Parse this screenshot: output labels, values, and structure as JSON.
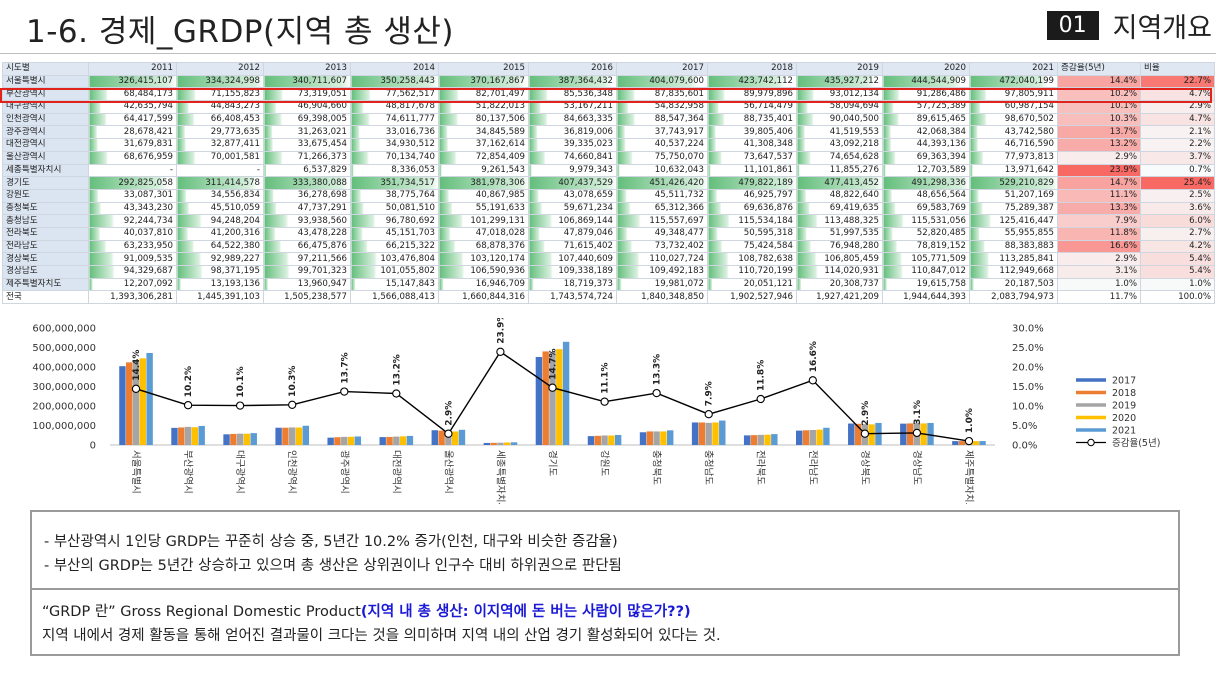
{
  "header": {
    "title": "1-6. 경제_GRDP(지역 총 생산)",
    "section_num": "01",
    "section_name": "지역개요"
  },
  "table": {
    "headers": [
      "시도별",
      "2011",
      "2012",
      "2013",
      "2014",
      "2015",
      "2016",
      "2017",
      "2018",
      "2019",
      "2020",
      "2021",
      "증감율(5년)",
      "비율"
    ],
    "rows": [
      {
        "region": "서울특별시",
        "v": [
          "326,415,107",
          "334,324,998",
          "340,711,607",
          "350,258,443",
          "370,167,867",
          "387,364,432",
          "404,079,600",
          "423,742,112",
          "435,927,212",
          "444,544,909",
          "472,040,199"
        ],
        "rate": "14.4%",
        "ratio": "22.7%"
      },
      {
        "region": "부산광역시",
        "v": [
          "68,484,173",
          "71,155,823",
          "73,319,051",
          "77,562,517",
          "82,701,497",
          "85,536,348",
          "87,835,601",
          "89,979,896",
          "93,012,134",
          "91,286,486",
          "97,805,911"
        ],
        "rate": "10.2%",
        "ratio": "4.7%"
      },
      {
        "region": "대구광역시",
        "v": [
          "42,635,794",
          "44,843,273",
          "46,904,660",
          "48,817,678",
          "51,822,013",
          "53,167,211",
          "54,832,958",
          "56,714,479",
          "58,094,694",
          "57,725,389",
          "60,987,154"
        ],
        "rate": "10.1%",
        "ratio": "2.9%"
      },
      {
        "region": "인천광역시",
        "v": [
          "64,417,599",
          "66,408,453",
          "69,398,005",
          "74,611,777",
          "80,137,506",
          "84,663,335",
          "88,547,364",
          "88,735,401",
          "90,040,500",
          "89,615,465",
          "98,670,502"
        ],
        "rate": "10.3%",
        "ratio": "4.7%"
      },
      {
        "region": "광주광역시",
        "v": [
          "28,678,421",
          "29,773,635",
          "31,263,021",
          "33,016,736",
          "34,845,589",
          "36,819,006",
          "37,743,917",
          "39,805,406",
          "41,519,553",
          "42,068,384",
          "43,742,580"
        ],
        "rate": "13.7%",
        "ratio": "2.1%"
      },
      {
        "region": "대전광역시",
        "v": [
          "31,679,831",
          "32,877,411",
          "33,675,454",
          "34,930,512",
          "37,162,614",
          "39,335,023",
          "40,537,224",
          "41,308,348",
          "43,092,218",
          "44,393,136",
          "46,716,590"
        ],
        "rate": "13.2%",
        "ratio": "2.2%"
      },
      {
        "region": "울산광역시",
        "v": [
          "68,676,959",
          "70,001,581",
          "71,266,373",
          "70,134,740",
          "72,854,409",
          "74,660,841",
          "75,750,070",
          "73,647,537",
          "74,654,628",
          "69,363,394",
          "77,973,813"
        ],
        "rate": "2.9%",
        "ratio": "3.7%"
      },
      {
        "region": "세종특별자치시",
        "v": [
          "-",
          "-",
          "6,537,829",
          "8,336,053",
          "9,261,543",
          "9,979,343",
          "10,632,043",
          "11,101,861",
          "11,855,276",
          "12,703,589",
          "13,971,642"
        ],
        "rate": "23.9%",
        "ratio": "0.7%"
      },
      {
        "region": "경기도",
        "v": [
          "292,825,058",
          "311,414,578",
          "333,380,088",
          "351,734,517",
          "381,978,306",
          "407,437,529",
          "451,426,420",
          "479,822,189",
          "477,413,452",
          "491,298,336",
          "529,210,829"
        ],
        "rate": "14.7%",
        "ratio": "25.4%"
      },
      {
        "region": "강원도",
        "v": [
          "33,087,301",
          "34,556,834",
          "36,278,698",
          "38,775,764",
          "40,867,985",
          "43,078,659",
          "45,511,732",
          "46,925,797",
          "48,822,640",
          "48,656,564",
          "51,207,169"
        ],
        "rate": "11.1%",
        "ratio": "2.5%"
      },
      {
        "region": "충청북도",
        "v": [
          "43,343,230",
          "45,510,059",
          "47,737,291",
          "50,081,510",
          "55,191,633",
          "59,671,234",
          "65,312,366",
          "69,636,876",
          "69,419,635",
          "69,583,769",
          "75,289,387"
        ],
        "rate": "13.3%",
        "ratio": "3.6%"
      },
      {
        "region": "충청남도",
        "v": [
          "92,244,734",
          "94,248,204",
          "93,938,560",
          "96,780,692",
          "101,299,131",
          "106,869,144",
          "115,557,697",
          "115,534,184",
          "113,488,325",
          "115,531,056",
          "125,416,447"
        ],
        "rate": "7.9%",
        "ratio": "6.0%"
      },
      {
        "region": "전라북도",
        "v": [
          "40,037,810",
          "41,200,316",
          "43,478,228",
          "45,151,703",
          "47,018,028",
          "47,879,046",
          "49,348,477",
          "50,595,318",
          "51,997,535",
          "52,820,485",
          "55,955,855"
        ],
        "rate": "11.8%",
        "ratio": "2.7%"
      },
      {
        "region": "전라남도",
        "v": [
          "63,233,950",
          "64,522,380",
          "66,475,876",
          "66,215,322",
          "68,878,376",
          "71,615,402",
          "73,732,402",
          "75,424,584",
          "76,948,280",
          "78,819,152",
          "88,383,883"
        ],
        "rate": "16.6%",
        "ratio": "4.2%"
      },
      {
        "region": "경상북도",
        "v": [
          "91,009,535",
          "92,989,227",
          "97,211,566",
          "103,476,804",
          "103,120,174",
          "107,440,609",
          "110,027,724",
          "108,782,638",
          "106,805,459",
          "105,771,509",
          "113,285,841"
        ],
        "rate": "2.9%",
        "ratio": "5.4%"
      },
      {
        "region": "경상남도",
        "v": [
          "94,329,687",
          "98,371,195",
          "99,701,323",
          "101,055,802",
          "106,590,936",
          "109,338,189",
          "109,492,183",
          "110,720,199",
          "114,020,931",
          "110,847,012",
          "112,949,668"
        ],
        "rate": "3.1%",
        "ratio": "5.4%"
      },
      {
        "region": "제주특별자치도",
        "v": [
          "12,207,092",
          "13,193,136",
          "13,960,947",
          "15,147,843",
          "16,946,709",
          "18,719,373",
          "19,981,072",
          "20,051,121",
          "20,308,737",
          "19,615,758",
          "20,187,503"
        ],
        "rate": "1.0%",
        "ratio": "1.0%"
      },
      {
        "region": "전국",
        "v": [
          "1,393,306,281",
          "1,445,391,103",
          "1,505,238,577",
          "1,566,088,413",
          "1,660,844,316",
          "1,743,574,724",
          "1,840,348,850",
          "1,902,527,946",
          "1,927,421,209",
          "1,944,644,393",
          "2,083,794,973"
        ],
        "rate": "11.7%",
        "ratio": "100.0%"
      }
    ]
  },
  "chart_data": {
    "type": "bar",
    "categories": [
      "서울특별시",
      "부산광역시",
      "대구광역시",
      "인천광역시",
      "광주광역시",
      "대전광역시",
      "울산광역시",
      "세종특별자치시",
      "경기도",
      "강원도",
      "충청북도",
      "충청남도",
      "전라북도",
      "전라남도",
      "경상북도",
      "경상남도",
      "제주특별자치도"
    ],
    "series": [
      {
        "name": "2017",
        "color": "#4472c4",
        "values": [
          404079600,
          87835601,
          54832958,
          88547364,
          37743917,
          40537224,
          75750070,
          10632043,
          451426420,
          45511732,
          65312366,
          115557697,
          49348477,
          73732402,
          110027724,
          109492183,
          19981072
        ]
      },
      {
        "name": "2018",
        "color": "#ed7d31",
        "values": [
          423742112,
          89979896,
          56714479,
          88735401,
          39805406,
          41308348,
          73647537,
          11101861,
          479822189,
          46925797,
          69636876,
          115534184,
          50595318,
          75424584,
          108782638,
          110720199,
          20051121
        ]
      },
      {
        "name": "2019",
        "color": "#a5a5a5",
        "values": [
          435927212,
          93012134,
          58094694,
          90040500,
          41519553,
          43092218,
          74654628,
          11855276,
          477413452,
          48822640,
          69419635,
          113488325,
          51997535,
          76948280,
          106805459,
          114020931,
          20308737
        ]
      },
      {
        "name": "2020",
        "color": "#ffc000",
        "values": [
          444544909,
          91286486,
          57725389,
          89615465,
          42068384,
          44393136,
          69363394,
          12703589,
          491298336,
          48656564,
          69583769,
          115531056,
          52820485,
          78819152,
          105771509,
          110847012,
          19615758
        ]
      },
      {
        "name": "2021",
        "color": "#5b9bd5",
        "values": [
          472040199,
          97805911,
          60987154,
          98670502,
          43742580,
          46716590,
          77973813,
          13971642,
          529210829,
          51207169,
          75289387,
          125416447,
          55955855,
          88383883,
          113285841,
          112949668,
          20187503
        ]
      }
    ],
    "line": {
      "name": "증감율(5년)",
      "values": [
        14.4,
        10.2,
        10.1,
        10.3,
        13.7,
        13.2,
        2.9,
        23.9,
        14.7,
        11.1,
        13.3,
        7.9,
        11.8,
        16.6,
        2.9,
        3.1,
        1.0
      ],
      "labels": [
        "14.4%",
        "10.2%",
        "10.1%",
        "10.3%",
        "13.7%",
        "13.2%",
        "2.9%",
        "23.9%",
        "14.7%",
        "11.1%",
        "13.3%",
        "7.9%",
        "11.8%",
        "16.6%",
        "2.9%",
        "3.1%",
        "1.0%"
      ]
    },
    "y_left": {
      "min": 0,
      "max": 600000000,
      "ticks": [
        "0",
        "100,000,000",
        "200,000,000",
        "300,000,000",
        "400,000,000",
        "500,000,000",
        "600,000,000"
      ]
    },
    "y_right": {
      "min": 0,
      "max": 30,
      "ticks": [
        "0.0%",
        "5.0%",
        "10.0%",
        "15.0%",
        "20.0%",
        "25.0%",
        "30.0%"
      ]
    },
    "legend": "right"
  },
  "notes": {
    "bullet1": "-    부산광역시 1인당 GRDP는 꾸준히 상승 중, 5년간 10.2% 증가(인천, 대구와 비슷한 증감율)",
    "bullet2": "-    부산의 GRDP는 5년간 상승하고 있으며 총 생산은 상위권이나 인구수 대비 하위권으로 판단됨",
    "def_quote": "“GRDP 란” Gross Regional Domestic Product",
    "def_bold": "(지역 내 총 생산: 이지역에 돈 버는 사람이 많은가??)",
    "def_text": "지역 내에서 경제 활동을 통해 얻어진 결과물이 크다는 것을 의미하며 지역 내의 산업 경기 활성화되어 있다는 것."
  }
}
